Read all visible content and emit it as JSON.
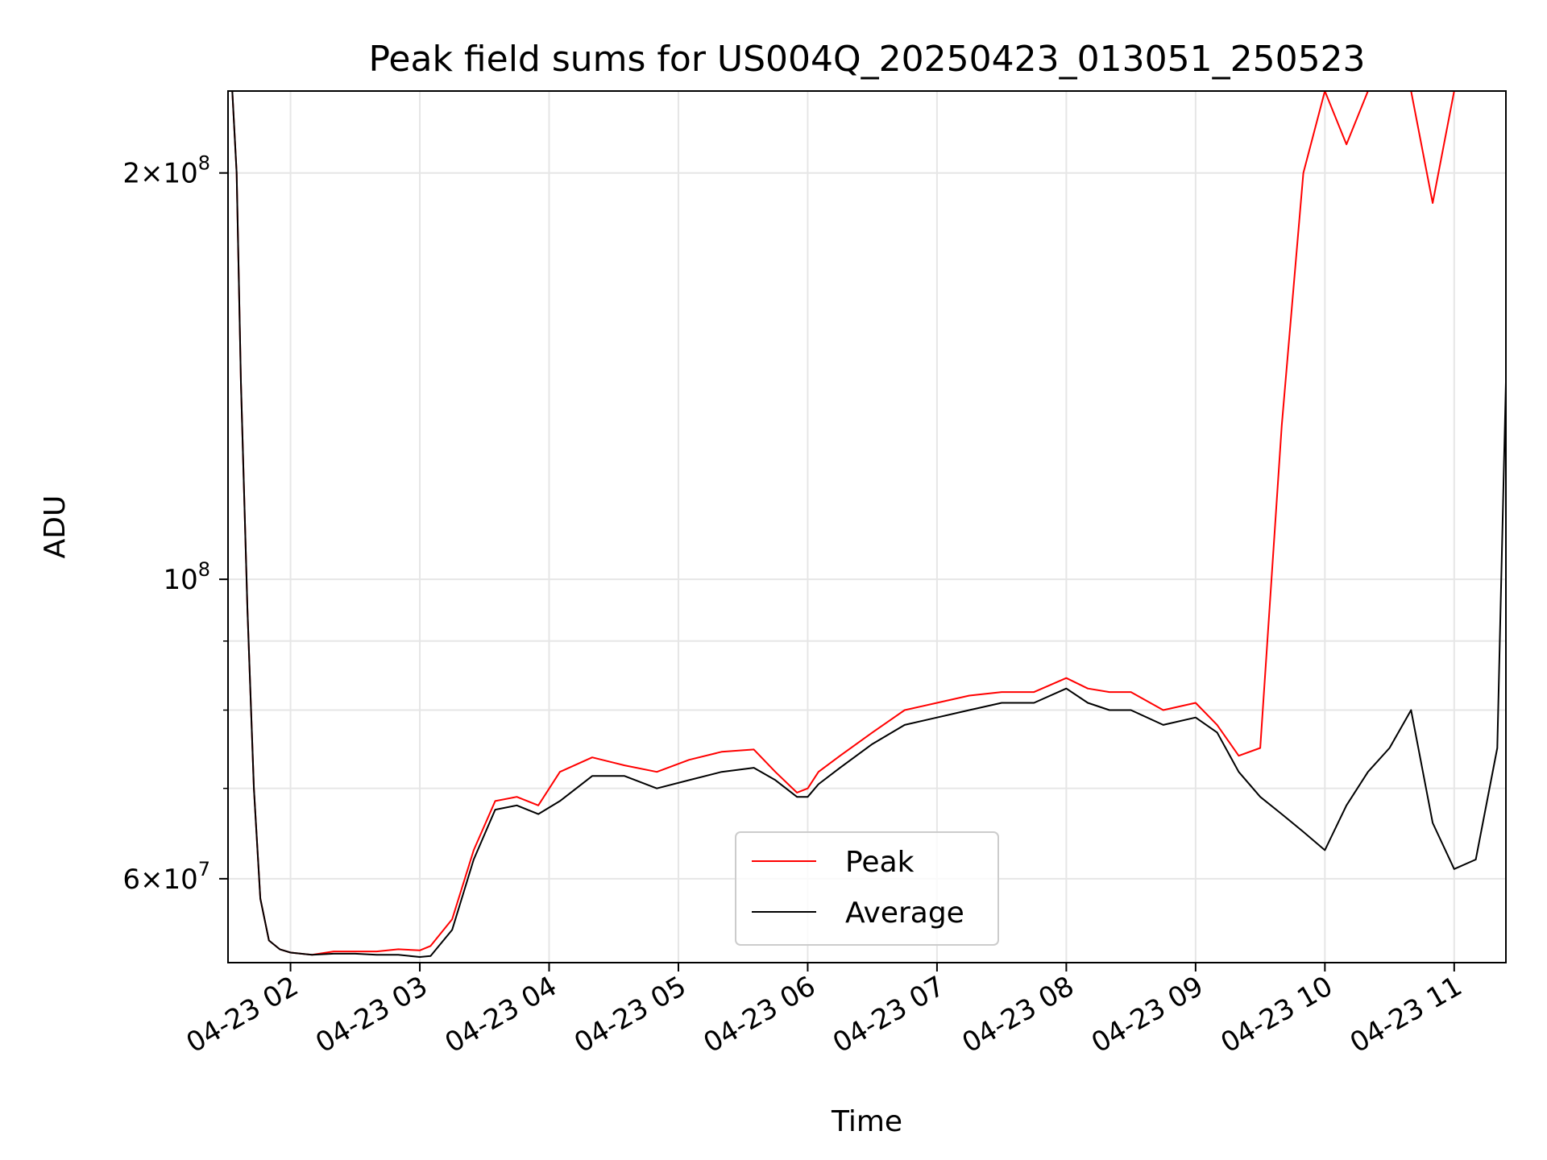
{
  "chart_data": {
    "type": "line",
    "title": "Peak field sums for US004Q_20250423_013051_250523",
    "xlabel": "Time",
    "ylabel": "ADU",
    "yscale": "log",
    "ylim": [
      52000000,
      230000000
    ],
    "xlim": [
      "2025-04-23 01:31",
      "2025-04-23 11:24"
    ],
    "grid": true,
    "legend_position": "lower-center",
    "x_ticks": [
      "04-23 02",
      "04-23 03",
      "04-23 04",
      "04-23 05",
      "04-23 06",
      "04-23 07",
      "04-23 08",
      "04-23 09",
      "04-23 10",
      "04-23 11"
    ],
    "y_major_ticks": [
      {
        "value": 60000000,
        "label_mantissa": "6",
        "label_exp": "7",
        "label_times": true
      },
      {
        "value": 100000000,
        "label_mantissa": "10",
        "label_exp": "8",
        "label_times": false
      },
      {
        "value": 200000000,
        "label_mantissa": "2",
        "label_exp": "8",
        "label_times": true
      }
    ],
    "y_minor_ticks": [
      70000000,
      80000000,
      90000000
    ],
    "series": [
      {
        "name": "Peak",
        "color": "#ff0000",
        "x": [
          "01:31",
          "01:33",
          "01:35",
          "01:37",
          "01:40",
          "01:43",
          "01:46",
          "01:50",
          "01:55",
          "02:00",
          "02:10",
          "02:20",
          "02:30",
          "02:40",
          "02:50",
          "03:00",
          "03:05",
          "03:15",
          "03:25",
          "03:35",
          "03:45",
          "03:55",
          "04:05",
          "04:20",
          "04:35",
          "04:50",
          "05:05",
          "05:20",
          "05:35",
          "05:45",
          "05:55",
          "06:00",
          "06:05",
          "06:15",
          "06:30",
          "06:45",
          "07:00",
          "07:15",
          "07:30",
          "07:45",
          "08:00",
          "08:10",
          "08:20",
          "08:30",
          "08:45",
          "09:00",
          "09:10",
          "09:20",
          "09:30",
          "09:40",
          "09:50",
          "10:00",
          "10:10",
          "10:20",
          "10:30",
          "10:40",
          "10:50",
          "11:00",
          "11:10",
          "11:20",
          "11:24"
        ],
        "y": [
          230000000,
          230000000,
          200000000,
          140000000,
          95000000,
          70000000,
          58000000,
          54000000,
          53200000,
          52900000,
          52700000,
          53000000,
          53000000,
          53000000,
          53200000,
          53100000,
          53500000,
          56000000,
          63000000,
          68500000,
          69000000,
          68000000,
          72000000,
          73800000,
          72800000,
          72000000,
          73500000,
          74500000,
          74800000,
          72000000,
          69500000,
          70000000,
          72000000,
          74000000,
          77000000,
          80000000,
          81000000,
          82000000,
          82500000,
          82500000,
          84500000,
          83000000,
          82500000,
          82500000,
          80000000,
          81000000,
          78000000,
          74000000,
          75000000,
          130000000,
          200000000,
          230000000,
          210000000,
          230000000,
          230000000,
          230000000,
          190000000,
          230000000,
          230000000,
          230000000,
          230000000
        ]
      },
      {
        "name": "Average",
        "color": "#000000",
        "x": [
          "01:31",
          "01:33",
          "01:35",
          "01:37",
          "01:40",
          "01:43",
          "01:46",
          "01:50",
          "01:55",
          "02:00",
          "02:10",
          "02:20",
          "02:30",
          "02:40",
          "02:50",
          "03:00",
          "03:05",
          "03:15",
          "03:25",
          "03:35",
          "03:45",
          "03:55",
          "04:05",
          "04:20",
          "04:35",
          "04:50",
          "05:05",
          "05:20",
          "05:35",
          "05:45",
          "05:55",
          "06:00",
          "06:05",
          "06:15",
          "06:30",
          "06:45",
          "07:00",
          "07:15",
          "07:30",
          "07:45",
          "08:00",
          "08:10",
          "08:20",
          "08:30",
          "08:45",
          "09:00",
          "09:10",
          "09:20",
          "09:30",
          "09:40",
          "09:50",
          "10:00",
          "10:10",
          "10:20",
          "10:30",
          "10:40",
          "10:50",
          "11:00",
          "11:10",
          "11:20",
          "11:24"
        ],
        "y": [
          230000000,
          230000000,
          200000000,
          140000000,
          95000000,
          70000000,
          58000000,
          54000000,
          53200000,
          52900000,
          52700000,
          52800000,
          52800000,
          52700000,
          52700000,
          52500000,
          52600000,
          55000000,
          62000000,
          67500000,
          68000000,
          67000000,
          68500000,
          71500000,
          71500000,
          70000000,
          71000000,
          72000000,
          72500000,
          71000000,
          69000000,
          69000000,
          70500000,
          72500000,
          75500000,
          78000000,
          79000000,
          80000000,
          81000000,
          81000000,
          83000000,
          81000000,
          80000000,
          80000000,
          78000000,
          79000000,
          77000000,
          72000000,
          69000000,
          67000000,
          65000000,
          63000000,
          68000000,
          72000000,
          75000000,
          80000000,
          66000000,
          61000000,
          62000000,
          75000000,
          140000000
        ]
      }
    ]
  }
}
